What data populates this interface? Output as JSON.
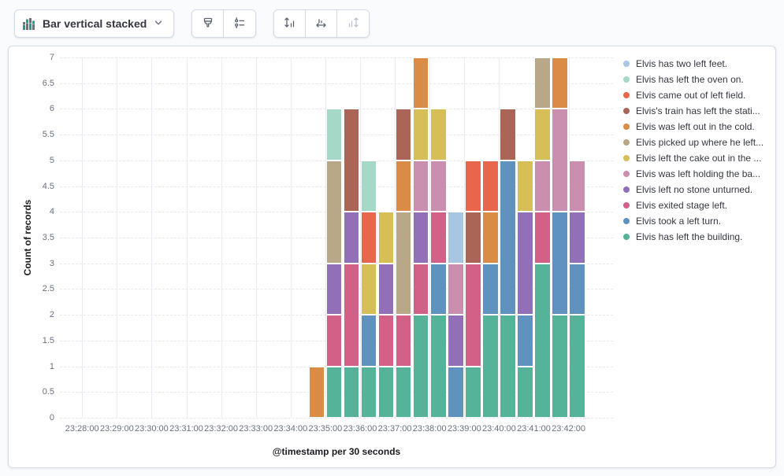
{
  "toolbar": {
    "chart_type": {
      "label": "Bar vertical stacked"
    },
    "buttons": [
      {
        "id": "visual-options",
        "icon": "brush-icon",
        "enabled": true
      },
      {
        "id": "legend-settings",
        "icon": "legend-list-icon",
        "enabled": true
      },
      {
        "id": "left-axis",
        "icon": "axis-left-icon",
        "enabled": true
      },
      {
        "id": "bottom-axis",
        "icon": "axis-bottom-icon",
        "enabled": true
      },
      {
        "id": "right-axis",
        "icon": "axis-right-icon",
        "enabled": false
      }
    ]
  },
  "chart_data": {
    "type": "bar",
    "stacked": true,
    "orientation": "vertical",
    "ylabel": "Count of records",
    "xlabel": "@timestamp per 30 seconds",
    "ylim": [
      0,
      7
    ],
    "y_tick_step": 0.5,
    "y_tick_labels": [
      "0",
      "0.5",
      "1",
      "1.5",
      "2",
      "2.5",
      "3",
      "3.5",
      "4",
      "4.5",
      "5",
      "5.5",
      "6",
      "6.5",
      "7"
    ],
    "x_axis_tick_labels": [
      "23:28:00",
      "23:29:00",
      "23:30:00",
      "23:31:00",
      "23:32:00",
      "23:33:00",
      "23:34:00",
      "23:35:00",
      "23:36:00",
      "23:37:00",
      "23:38:00",
      "23:39:00",
      "23:40:00",
      "23:41:00",
      "23:42:00"
    ],
    "grid": {
      "vertical": true,
      "horizontal_dashed": true
    },
    "legend_position": "right",
    "categories": [
      "23:34:30",
      "23:35:00",
      "23:35:30",
      "23:36:00",
      "23:36:30",
      "23:37:00",
      "23:37:30",
      "23:38:00",
      "23:38:30",
      "23:39:00",
      "23:39:30",
      "23:40:00",
      "23:40:30",
      "23:41:00",
      "23:41:30",
      "23:42:00"
    ],
    "series": [
      {
        "name": "Elvis has left the building.",
        "color": "#54B399",
        "values": [
          0,
          1,
          1,
          1,
          1,
          1,
          2,
          2,
          0,
          1,
          2,
          2,
          1,
          3,
          2,
          2
        ]
      },
      {
        "name": "Elvis took a left turn.",
        "color": "#6092C0",
        "values": [
          0,
          0,
          0,
          1,
          0,
          0,
          0,
          1,
          1,
          0,
          1,
          3,
          1,
          0,
          2,
          1
        ]
      },
      {
        "name": "Elvis exited stage left.",
        "color": "#D36086",
        "values": [
          0,
          1,
          2,
          0,
          1,
          1,
          1,
          1,
          0,
          2,
          0,
          0,
          0,
          1,
          0,
          0
        ]
      },
      {
        "name": "Elvis left no stone unturned.",
        "color": "#9170B8",
        "values": [
          0,
          1,
          1,
          0,
          1,
          0,
          1,
          0,
          1,
          0,
          0,
          0,
          2,
          0,
          0,
          1
        ]
      },
      {
        "name": "Elvis was left holding the ba...",
        "color": "#CA8EAE",
        "values": [
          0,
          0,
          0,
          0,
          0,
          0,
          1,
          1,
          1,
          0,
          0,
          0,
          0,
          1,
          2,
          1
        ]
      },
      {
        "name": "Elvis left the cake out in the ...",
        "color": "#D6BF57",
        "values": [
          0,
          0,
          0,
          1,
          1,
          0,
          1,
          1,
          0,
          0,
          0,
          0,
          1,
          1,
          0,
          0
        ]
      },
      {
        "name": "Elvis picked up where he left...",
        "color": "#B9A888",
        "values": [
          0,
          2,
          0,
          0,
          0,
          2,
          0,
          0,
          0,
          0,
          0,
          0,
          0,
          1,
          0,
          0
        ]
      },
      {
        "name": "Elvis was left out in the cold.",
        "color": "#DA8B45",
        "values": [
          1,
          0,
          0,
          0,
          0,
          1,
          1,
          0,
          0,
          0,
          1,
          0,
          0,
          0,
          1,
          0
        ]
      },
      {
        "name": "Elvis's train has left the stati...",
        "color": "#AA6556",
        "values": [
          0,
          0,
          2,
          0,
          0,
          1,
          0,
          0,
          0,
          1,
          0,
          1,
          0,
          0,
          0,
          0
        ]
      },
      {
        "name": "Elvis came out of left field.",
        "color": "#E7664C",
        "values": [
          0,
          0,
          0,
          1,
          0,
          0,
          0,
          0,
          0,
          1,
          1,
          0,
          0,
          0,
          0,
          0
        ]
      },
      {
        "name": "Elvis has left the oven on.",
        "color": "#A6D8C8",
        "values": [
          0,
          1,
          0,
          1,
          0,
          0,
          0,
          0,
          0,
          0,
          0,
          0,
          0,
          0,
          0,
          0
        ]
      },
      {
        "name": "Elvis has two left feet.",
        "color": "#A8C6E1",
        "values": [
          0,
          0,
          0,
          0,
          0,
          0,
          0,
          0,
          1,
          0,
          0,
          0,
          0,
          0,
          0,
          0
        ]
      }
    ],
    "legend": [
      {
        "label": "Elvis has two left feet.",
        "color": "#A8C6E1"
      },
      {
        "label": "Elvis has left the oven on.",
        "color": "#A6D8C8"
      },
      {
        "label": "Elvis came out of left field.",
        "color": "#E7664C"
      },
      {
        "label": "Elvis's train has left the stati...",
        "color": "#AA6556"
      },
      {
        "label": "Elvis was left out in the cold.",
        "color": "#DA8B45"
      },
      {
        "label": "Elvis picked up where he left...",
        "color": "#B9A888"
      },
      {
        "label": "Elvis left the cake out in the ...",
        "color": "#D6BF57"
      },
      {
        "label": "Elvis was left holding the ba...",
        "color": "#CA8EAE"
      },
      {
        "label": "Elvis left no stone unturned.",
        "color": "#9170B8"
      },
      {
        "label": "Elvis exited stage left.",
        "color": "#D36086"
      },
      {
        "label": "Elvis took a left turn.",
        "color": "#6092C0"
      },
      {
        "label": "Elvis has left the building.",
        "color": "#54B399"
      }
    ]
  },
  "icon_colors": {
    "chart_icon_green": "#2a9a88",
    "chart_icon_slate": "#69707d"
  }
}
